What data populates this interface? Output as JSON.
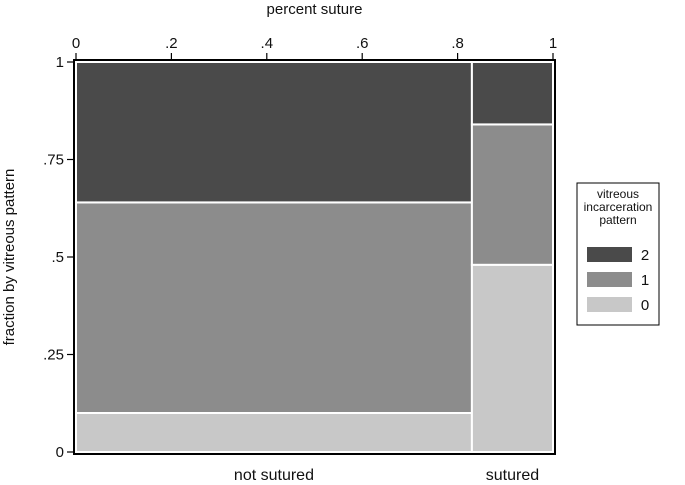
{
  "chart_data": {
    "type": "mosaic",
    "xlabel": "percent suture",
    "ylabel": "fraction by vitreous pattern",
    "xlim": [
      0,
      1
    ],
    "ylim": [
      0,
      1
    ],
    "x_ticks": [
      "0",
      ".2",
      ".4",
      ".6",
      ".8",
      "1"
    ],
    "x_tick_values": [
      0,
      0.2,
      0.4,
      0.6,
      0.8,
      1
    ],
    "y_ticks": [
      "0",
      ".25",
      ".5",
      ".75",
      "1"
    ],
    "y_tick_values": [
      0,
      0.25,
      0.5,
      0.75,
      1
    ],
    "categories": [
      "not sutured",
      "sutured"
    ],
    "category_widths": [
      0.83,
      0.17
    ],
    "legend": {
      "title_lines": [
        "vitreous",
        "incarceration",
        "pattern"
      ],
      "position": "right",
      "entries": [
        "2",
        "1",
        "0"
      ]
    },
    "series": [
      {
        "name": "0",
        "color": "#c8c8c8",
        "values": [
          0.1,
          0.48
        ]
      },
      {
        "name": "1",
        "color": "#8c8c8c",
        "values": [
          0.54,
          0.36
        ]
      },
      {
        "name": "2",
        "color": "#4a4a4a",
        "values": [
          0.36,
          0.16
        ]
      }
    ],
    "colors": {
      "frame": "#000000",
      "plot_background": "#ffffff",
      "separator": "#ffffff"
    }
  }
}
